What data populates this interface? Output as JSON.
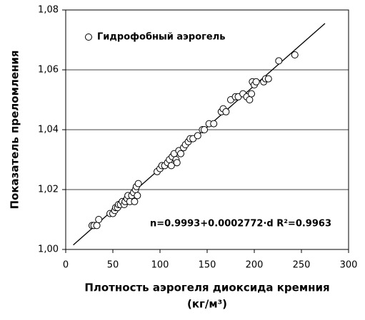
{
  "chart_data": {
    "type": "scatter",
    "ylabel": "Показатель преломления",
    "xlabel": "Плотность аэрогеля диоксида кремния",
    "xlabel_unit": "(кг/м³)",
    "annotation": "n=0.9993+0.0002772·d  R²=0.9963",
    "xlim": [
      0,
      300
    ],
    "xticks": [
      0,
      50,
      100,
      150,
      200,
      250,
      300
    ],
    "ylim": [
      1.0,
      1.08
    ],
    "yticks": [
      {
        "value": 1.0,
        "label": "1,00"
      },
      {
        "value": 1.02,
        "label": "1,02"
      },
      {
        "value": 1.04,
        "label": "1,04"
      },
      {
        "value": 1.06,
        "label": "1,06"
      },
      {
        "value": 1.08,
        "label": "1,08"
      }
    ],
    "grid": true,
    "legend": "upper left",
    "series": [
      {
        "name": "Гидрофобный аэрогель",
        "color": "#000000",
        "x": [
          28,
          30,
          33,
          35,
          47,
          50,
          52,
          53,
          55,
          56,
          58,
          60,
          62,
          63,
          65,
          66,
          68,
          70,
          72,
          73,
          74,
          75,
          76,
          77,
          97,
          100,
          102,
          105,
          108,
          110,
          112,
          113,
          115,
          117,
          118,
          120,
          122,
          125,
          127,
          130,
          132,
          135,
          140,
          145,
          147,
          152,
          157,
          165,
          167,
          170,
          175,
          180,
          183,
          188,
          192,
          195,
          197,
          198,
          200,
          202,
          210,
          212,
          215,
          226,
          243
        ],
        "values": [
          1.008,
          1.008,
          1.008,
          1.01,
          1.012,
          1.012,
          1.013,
          1.014,
          1.014,
          1.015,
          1.015,
          1.016,
          1.015,
          1.016,
          1.017,
          1.018,
          1.016,
          1.018,
          1.019,
          1.016,
          1.02,
          1.021,
          1.018,
          1.022,
          1.026,
          1.027,
          1.028,
          1.028,
          1.029,
          1.03,
          1.028,
          1.031,
          1.032,
          1.03,
          1.029,
          1.033,
          1.032,
          1.034,
          1.035,
          1.036,
          1.037,
          1.037,
          1.038,
          1.04,
          1.04,
          1.042,
          1.042,
          1.046,
          1.047,
          1.046,
          1.05,
          1.051,
          1.051,
          1.052,
          1.051,
          1.05,
          1.052,
          1.056,
          1.055,
          1.056,
          1.056,
          1.057,
          1.057,
          1.063,
          1.065
        ]
      }
    ],
    "trendline": {
      "x": [
        8,
        275
      ],
      "values": [
        1.0015,
        1.0755
      ],
      "color": "#000000"
    }
  }
}
